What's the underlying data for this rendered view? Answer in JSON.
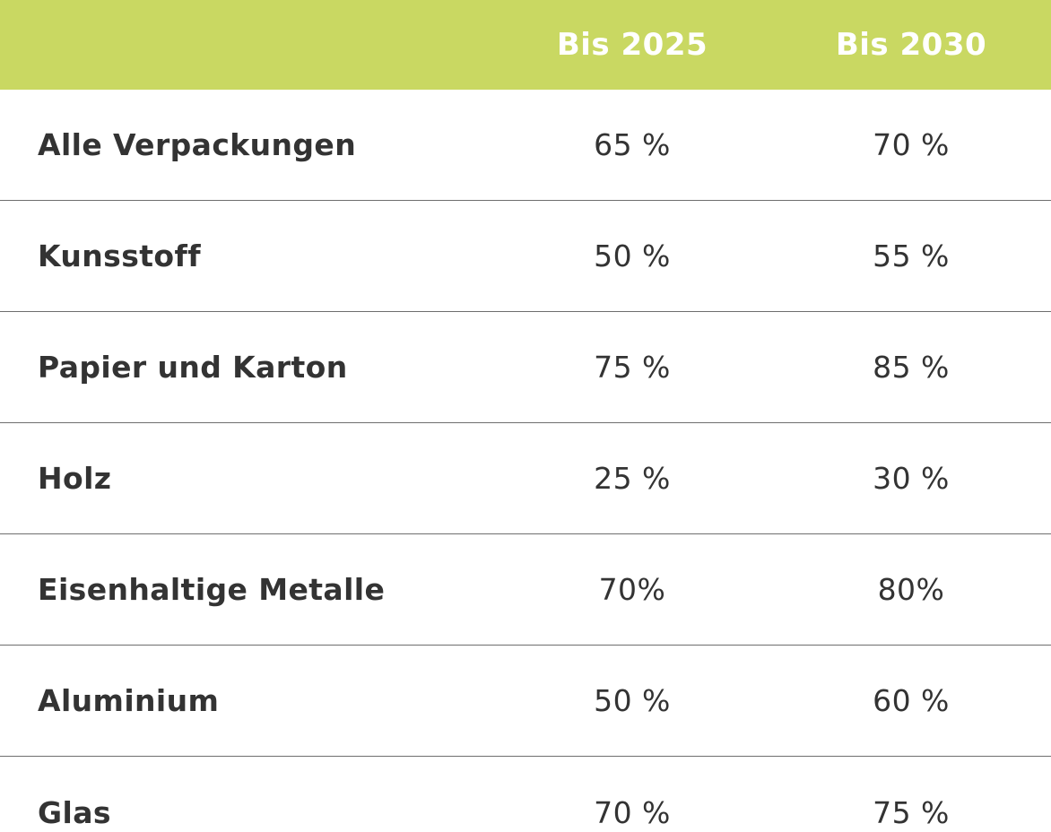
{
  "table": {
    "header": {
      "label_col": "",
      "col_2025": "Bis 2025",
      "col_2030": "Bis 2030"
    },
    "rows": [
      {
        "label": "Alle Verpackungen",
        "v2025": "65 %",
        "v2030": "70 %"
      },
      {
        "label": "Kunsstoff",
        "v2025": "50 %",
        "v2030": "55 %"
      },
      {
        "label": "Papier und Karton",
        "v2025": "75 %",
        "v2030": "85 %"
      },
      {
        "label": "Holz",
        "v2025": "25 %",
        "v2030": "30 %"
      },
      {
        "label": "Eisenhaltige Metalle",
        "v2025": "70%",
        "v2030": "80%"
      },
      {
        "label": "Aluminium",
        "v2025": "50 %",
        "v2030": "60 %"
      },
      {
        "label": "Glas",
        "v2025": "70 %",
        "v2030": "75 %"
      }
    ]
  },
  "colors": {
    "header_bg": "#c9d862",
    "header_text": "#ffffff",
    "body_text": "#333333",
    "divider": "#6e6e6e"
  }
}
